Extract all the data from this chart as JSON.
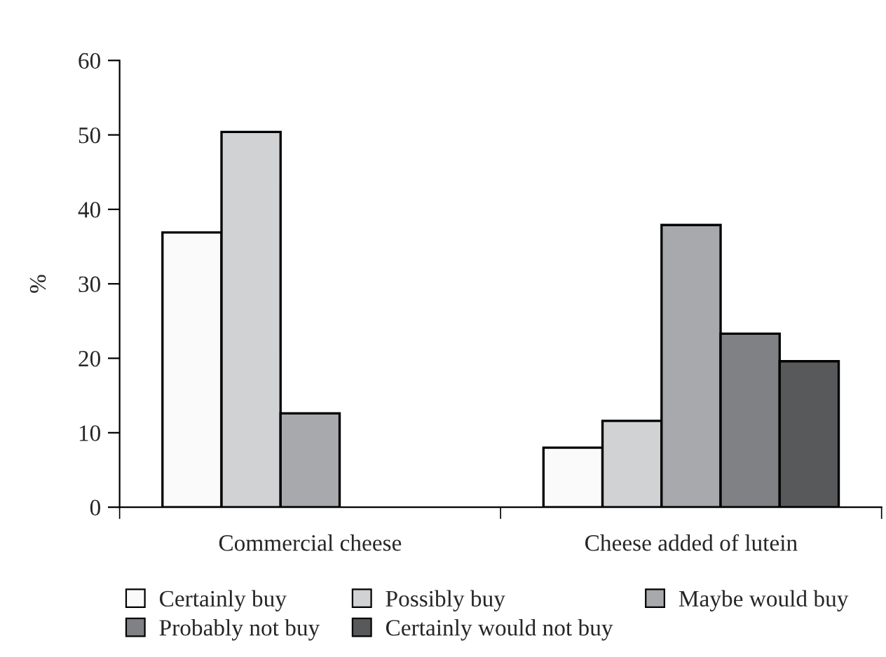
{
  "chart_data": {
    "type": "bar",
    "ylabel": "%",
    "categories": [
      "Commercial cheese",
      "Cheese added of lutein"
    ],
    "series": [
      {
        "name": "Certainly buy",
        "color": "#fafafa",
        "values": [
          36.9,
          8.0
        ]
      },
      {
        "name": "Possibly buy",
        "color": "#d1d2d4",
        "values": [
          50.4,
          11.6
        ]
      },
      {
        "name": "Maybe would buy",
        "color": "#a8a9ad",
        "values": [
          12.6,
          37.9
        ]
      },
      {
        "name": "Probably not buy",
        "color": "#808184",
        "values": [
          null,
          23.3
        ]
      },
      {
        "name": "Certainly would not buy",
        "color": "#58595b",
        "values": [
          null,
          19.6
        ]
      }
    ],
    "ylim": [
      0,
      60
    ],
    "yticks": [
      0,
      10,
      20,
      30,
      40,
      50,
      60
    ],
    "grid": false,
    "legend": "bottom"
  }
}
